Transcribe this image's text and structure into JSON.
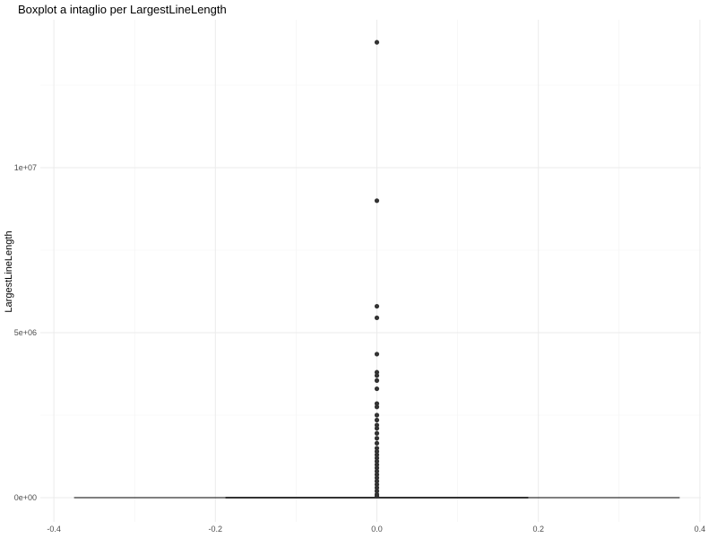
{
  "chart_data": {
    "type": "boxplot",
    "title": "Boxplot a intaglio per LargestLineLength",
    "xlabel": "",
    "ylabel": "LargestLineLength",
    "xlim": [
      -0.4,
      0.4
    ],
    "ylim": [
      0,
      14000000
    ],
    "x_ticks": [
      -0.4,
      -0.2,
      0.0,
      0.2,
      0.4
    ],
    "x_tick_labels": [
      "-0.4",
      "-0.2",
      "0.0",
      "0.2",
      "0.4"
    ],
    "y_ticks": [
      0,
      5000000,
      10000000
    ],
    "y_tick_labels": [
      "0e+00",
      "5e+06",
      "1e+07"
    ],
    "grid": true,
    "box": {
      "x": 0.0,
      "notch_half_width": 0.1875,
      "box_half_width": 0.375,
      "q1": 0,
      "median": 0,
      "q3": 0
    },
    "outliers": [
      13800000,
      9000000,
      5800000,
      5450000,
      4350000,
      3800000,
      3700000,
      3550000,
      3300000,
      2850000,
      2750000,
      2500000,
      2350000,
      2200000,
      2100000,
      1950000,
      1800000,
      1650000,
      1500000,
      1400000,
      1300000,
      1200000,
      1100000,
      1000000,
      900000,
      800000,
      700000,
      600000,
      500000,
      400000,
      300000,
      200000,
      100000,
      50000
    ]
  }
}
